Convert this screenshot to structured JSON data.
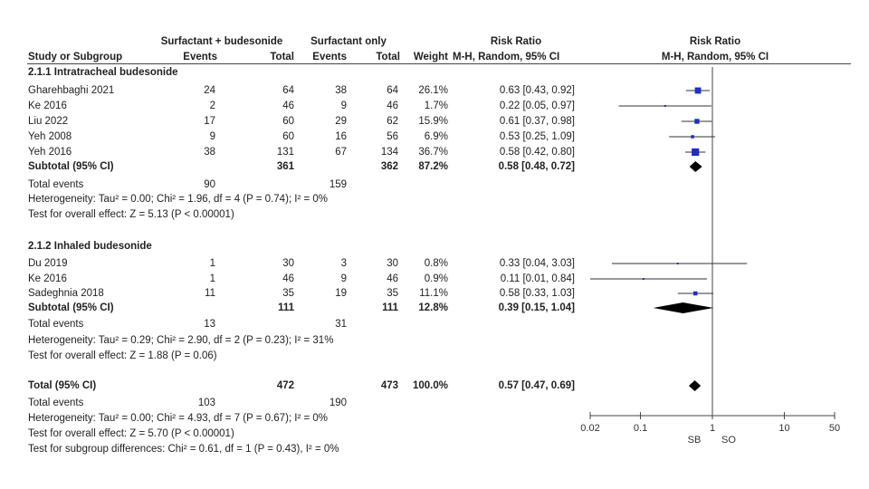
{
  "header": {
    "group1_name": "Surfactant + budesonide",
    "group2_name": "Surfactant only",
    "rr_title": "Risk Ratio",
    "plot_title": "Risk Ratio",
    "col_study": "Study or Subgroup",
    "col_events": "Events",
    "col_total": "Total",
    "col_weight": "Weight",
    "col_method": "M-H, Random, 95% CI",
    "plot_method": "M-H, Random, 95% CI"
  },
  "subgroups": [
    {
      "title": "2.1.1 Intratracheal budesonide",
      "studies": [
        {
          "name": "Gharehbaghi 2021",
          "e1": "24",
          "n1": "64",
          "e2": "38",
          "n2": "64",
          "weight": "26.1%",
          "ci": "0.63 [0.43, 0.92]"
        },
        {
          "name": "Ke 2016",
          "e1": "2",
          "n1": "46",
          "e2": "9",
          "n2": "46",
          "weight": "1.7%",
          "ci": "0.22 [0.05, 0.97]"
        },
        {
          "name": "Liu 2022",
          "e1": "17",
          "n1": "60",
          "e2": "29",
          "n2": "62",
          "weight": "15.9%",
          "ci": "0.61 [0.37, 0.98]"
        },
        {
          "name": "Yeh 2008",
          "e1": "9",
          "n1": "60",
          "e2": "16",
          "n2": "56",
          "weight": "6.9%",
          "ci": "0.53 [0.25, 1.09]"
        },
        {
          "name": "Yeh 2016",
          "e1": "38",
          "n1": "131",
          "e2": "67",
          "n2": "134",
          "weight": "36.7%",
          "ci": "0.58 [0.42, 0.80]"
        }
      ],
      "subtotal": {
        "label": "Subtotal (95% CI)",
        "n1": "361",
        "n2": "362",
        "weight": "87.2%",
        "ci": "0.58 [0.48, 0.72]"
      },
      "events": {
        "label": "Total events",
        "e1": "90",
        "e2": "159"
      },
      "heterogeneity": "Heterogeneity: Tau² = 0.00; Chi² = 1.96, df = 4 (P = 0.74); I² = 0%",
      "overall": "Test for overall effect: Z = 5.13 (P < 0.00001)"
    },
    {
      "title": "2.1.2 Inhaled budesonide",
      "studies": [
        {
          "name": "Du 2019",
          "e1": "1",
          "n1": "30",
          "e2": "3",
          "n2": "30",
          "weight": "0.8%",
          "ci": "0.33 [0.04, 3.03]"
        },
        {
          "name": "Ke 2016",
          "e1": "1",
          "n1": "46",
          "e2": "9",
          "n2": "46",
          "weight": "0.9%",
          "ci": "0.11 [0.01, 0.84]"
        },
        {
          "name": "Sadeghnia 2018",
          "e1": "11",
          "n1": "35",
          "e2": "19",
          "n2": "35",
          "weight": "11.1%",
          "ci": "0.58 [0.33, 1.03]"
        }
      ],
      "subtotal": {
        "label": "Subtotal (95% CI)",
        "n1": "111",
        "n2": "111",
        "weight": "12.8%",
        "ci": "0.39 [0.15, 1.04]"
      },
      "events": {
        "label": "Total events",
        "e1": "13",
        "e2": "31"
      },
      "heterogeneity": "Heterogeneity: Tau² = 0.29; Chi² = 2.90, df = 2 (P = 0.23); I² = 31%",
      "overall": "Test for overall effect: Z = 1.88 (P = 0.06)"
    }
  ],
  "total": {
    "label": "Total (95% CI)",
    "n1": "472",
    "n2": "473",
    "weight": "100.0%",
    "ci": "0.57 [0.47, 0.69]",
    "events": {
      "label": "Total events",
      "e1": "103",
      "e2": "190"
    },
    "heterogeneity": "Heterogeneity: Tau² = 0.00; Chi² = 4.93, df = 7 (P = 0.67); I² = 0%",
    "overall": "Test for overall effect: Z = 5.70 (P < 0.00001)",
    "subgroup_diff": "Test for subgroup differences: Chi² = 0.61, df = 1 (P = 0.43), I² = 0%"
  },
  "axis": {
    "favours_left": "SB",
    "favours_right": "SO"
  },
  "colors": {
    "marker": "#1f2fbf",
    "summary": "#000000",
    "line": "#444444"
  },
  "chart_data": {
    "type": "scatter",
    "xscale": "log",
    "xlim": [
      0.02,
      50
    ],
    "ticks": [
      0.02,
      0.1,
      1,
      10,
      50
    ],
    "tick_labels": [
      "0.02",
      "0.1",
      "1",
      "10",
      "50"
    ],
    "studies": [
      {
        "name": "Gharehbaghi 2021",
        "rr": 0.63,
        "lo": 0.43,
        "hi": 0.92,
        "weight": 26.1
      },
      {
        "name": "Ke 2016",
        "rr": 0.22,
        "lo": 0.05,
        "hi": 0.97,
        "weight": 1.7
      },
      {
        "name": "Liu 2022",
        "rr": 0.61,
        "lo": 0.37,
        "hi": 0.98,
        "weight": 15.9
      },
      {
        "name": "Yeh 2008",
        "rr": 0.53,
        "lo": 0.25,
        "hi": 1.09,
        "weight": 6.9
      },
      {
        "name": "Yeh 2016",
        "rr": 0.58,
        "lo": 0.42,
        "hi": 0.8,
        "weight": 36.7
      },
      {
        "name": "Subtotal (95% CI)",
        "rr": 0.58,
        "lo": 0.48,
        "hi": 0.72,
        "summary": true
      },
      {
        "name": "Du 2019",
        "rr": 0.33,
        "lo": 0.04,
        "hi": 3.03,
        "weight": 0.8
      },
      {
        "name": "Ke 2016",
        "rr": 0.11,
        "lo": 0.01,
        "hi": 0.84,
        "weight": 0.9
      },
      {
        "name": "Sadeghnia 2018",
        "rr": 0.58,
        "lo": 0.33,
        "hi": 1.03,
        "weight": 11.1
      },
      {
        "name": "Subtotal (95% CI)",
        "rr": 0.39,
        "lo": 0.15,
        "hi": 1.04,
        "summary": true
      },
      {
        "name": "Total (95% CI)",
        "rr": 0.57,
        "lo": 0.47,
        "hi": 0.69,
        "summary": true
      }
    ]
  }
}
